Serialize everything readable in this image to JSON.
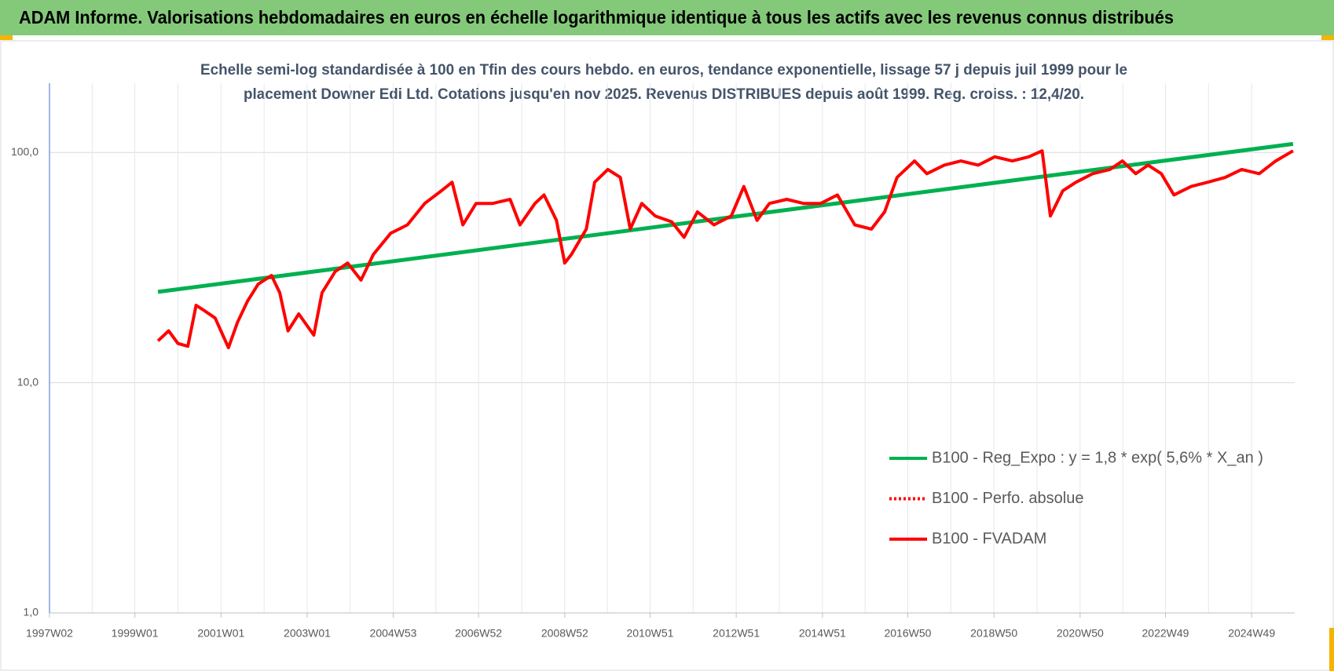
{
  "chart_data": {
    "type": "line",
    "title": "ADAM Informe. Valorisations hebdomadaires en euros en échelle logarithmique identique à tous les actifs avec les revenus connus distribués",
    "subtitle": [
      "Echelle semi-log standardisée à 100 en Tfin des cours hebdo. en euros, tendance exponentielle, lissage 57 j depuis juil 1999 pour le",
      "placement Downer Edi Ltd. Cotations jusqu'en nov 2025. Revenus DISTRIBUES depuis août 1999. Reg. croiss. : 12,4/20."
    ],
    "log_scale": true,
    "grid": true,
    "legend_position": "right",
    "xlim": [
      "1997W02",
      "2025W49"
    ],
    "xticks": [
      "1997W02",
      "1999W01",
      "2001W01",
      "2003W01",
      "2004W53",
      "2006W52",
      "2008W52",
      "2010W51",
      "2012W51",
      "2014W51",
      "2016W50",
      "2018W50",
      "2020W50",
      "2022W49",
      "2024W49"
    ],
    "ylim": [
      1,
      200
    ],
    "yticks": [
      {
        "value": 1,
        "label": "1,0"
      },
      {
        "value": 10,
        "label": "10,0"
      },
      {
        "value": 100,
        "label": "100,0"
      }
    ],
    "series": [
      {
        "name": "B100 - Reg_Expo : y = 1,8 * exp( 5,6% *  X_an )",
        "color": "#00b050",
        "x": [
          "1999W29",
          "2025W47"
        ],
        "values": [
          24.8,
          108.9
        ]
      },
      {
        "name": "B100 - Perfo. absolue",
        "color": "#ff0000",
        "dashed": true
      },
      {
        "name": "B100 - FVADAM",
        "color": "#ff0000",
        "x": [
          "1999W29",
          "1999W42",
          "2000W01",
          "2000W13",
          "2000W23",
          "2000W31",
          "2000W46",
          "2001W10",
          "2001W21",
          "2001W33",
          "2001W46",
          "2002W10",
          "2002W20",
          "2002W30",
          "2002W43",
          "2003W09",
          "2003W19",
          "2003W35",
          "2003W50",
          "2004W14",
          "2004W29",
          "2004W50",
          "2005W18",
          "2005W39",
          "2006W07",
          "2006W20",
          "2006W33",
          "2006W49",
          "2007W17",
          "2007W38",
          "2007W50",
          "2008W16",
          "2008W27",
          "2008W42",
          "2008W52",
          "2009W08",
          "2009W26",
          "2009W36",
          "2009W52",
          "2010W15",
          "2010W27",
          "2010W41",
          "2011W05",
          "2011W25",
          "2011W40",
          "2012W04",
          "2012W24",
          "2012W45",
          "2013W08",
          "2013W24",
          "2013W39",
          "2014W08",
          "2014W28",
          "2014W49",
          "2015W17",
          "2015W38",
          "2016W06",
          "2016W22",
          "2016W37",
          "2017W06",
          "2017W21",
          "2017W42",
          "2018W10",
          "2018W31",
          "2018W51",
          "2019W20",
          "2019W40",
          "2020W04",
          "2020W14",
          "2020W29",
          "2020W45",
          "2021W13",
          "2021W34",
          "2021W49",
          "2022W13",
          "2022W28",
          "2022W44",
          "2023W07",
          "2023W28",
          "2023W48",
          "2024W17",
          "2024W37",
          "2025W06",
          "2025W26",
          "2025W47"
        ],
        "values": [
          15.2,
          16.8,
          14.8,
          14.4,
          21.7,
          20.8,
          19.1,
          14.2,
          18.3,
          22.6,
          26.8,
          29.2,
          24.6,
          16.8,
          19.9,
          16.1,
          24.6,
          30.4,
          33.1,
          27.9,
          36.1,
          44.6,
          48.5,
          60.1,
          68.2,
          74.3,
          48.5,
          60.1,
          60.1,
          62.6,
          48.5,
          60.1,
          65.4,
          50.7,
          33.1,
          36.1,
          46.5,
          74.3,
          84.4,
          77.9,
          46.5,
          60.1,
          53,
          50,
          42.8,
          55.2,
          48.5,
          53,
          71.2,
          50.7,
          60.1,
          62.6,
          60.1,
          60.1,
          65.4,
          48.5,
          46.5,
          55.2,
          77.9,
          91.9,
          80.9,
          88.1,
          91.9,
          88.1,
          95.8,
          91.9,
          95.8,
          101.7,
          53,
          68.2,
          74.3,
          80.9,
          84.4,
          91.9,
          80.9,
          88.1,
          80.9,
          65.4,
          71.2,
          74.3,
          77.9,
          84.4,
          80.9,
          91.9,
          101.7
        ]
      }
    ]
  }
}
